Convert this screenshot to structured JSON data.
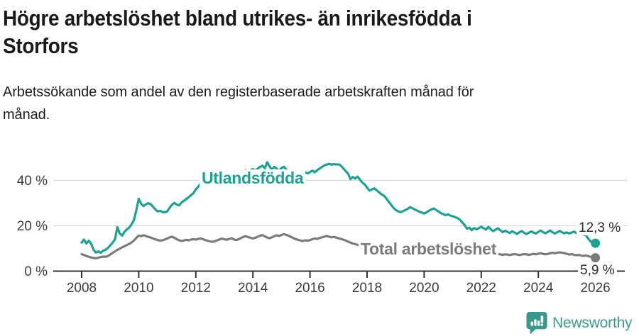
{
  "header": {
    "title_lines": [
      "Högre arbetslöshet bland utrikes- än inrikesfödda i",
      "Storfors"
    ],
    "subtitle_lines": [
      "Arbetssökande som andel av den registerbaserade arbetskraften månad för",
      "månad."
    ]
  },
  "chart_data": {
    "type": "line",
    "unit": "%",
    "x_start_year": 2008,
    "x_points_per_year": 12,
    "x_end_year": 2026,
    "ylim": [
      0,
      50
    ],
    "grid": true,
    "y_ticks": [
      {
        "value": 0,
        "label": "0 %"
      },
      {
        "value": 20,
        "label": "20 %"
      },
      {
        "value": 40,
        "label": "40 %"
      }
    ],
    "x_ticks": [
      {
        "value": 2008,
        "label": "2008"
      },
      {
        "value": 2010,
        "label": "2010"
      },
      {
        "value": 2012,
        "label": "2012"
      },
      {
        "value": 2014,
        "label": "2014"
      },
      {
        "value": 2016,
        "label": "2016"
      },
      {
        "value": 2018,
        "label": "2018"
      },
      {
        "value": 2020,
        "label": "2020"
      },
      {
        "value": 2022,
        "label": "2022"
      },
      {
        "value": 2024,
        "label": "2024"
      },
      {
        "value": 2026,
        "label": "2026"
      }
    ],
    "series": [
      {
        "name": "Utlandsfödda",
        "color": "#1ca192",
        "end_label": "12,3 %",
        "end_value": 12.3,
        "values": [
          12.6,
          13.9,
          12.2,
          13.4,
          12.1,
          9.4,
          8.2,
          8.7,
          8.1,
          9.0,
          9.4,
          10.2,
          11.3,
          12.5,
          14.0,
          19.4,
          16.6,
          15.7,
          17.3,
          18.4,
          19.2,
          20.7,
          22.6,
          27.0,
          31.9,
          29.7,
          28.7,
          29.4,
          30.0,
          29.5,
          28.4,
          27.2,
          26.3,
          26.6,
          26.1,
          25.9,
          26.4,
          27.9,
          29.3,
          30.1,
          29.3,
          29.0,
          30.3,
          31.0,
          31.8,
          32.6,
          33.5,
          34.4,
          36.0,
          37.2,
          38.6,
          40.2,
          39.6,
          40.7,
          41.1,
          40.5,
          41.4,
          41.9,
          41.3,
          42.1,
          42.7,
          42.1,
          42.9,
          43.5,
          42.8,
          43.3,
          44.1,
          43.4,
          44.0,
          44.6,
          43.9,
          44.5,
          45.0,
          44.3,
          45.2,
          45.9,
          46.5,
          45.4,
          48.0,
          46.2,
          44.7,
          46.0,
          45.2,
          44.0,
          45.5,
          46.0,
          44.9,
          43.7,
          42.9,
          42.3,
          41.8,
          42.6,
          43.2,
          42.7,
          43.5,
          43.1,
          43.7,
          44.3,
          43.6,
          44.5,
          45.2,
          45.9,
          46.6,
          47.0,
          47.3,
          46.9,
          47.2,
          47.0,
          47.1,
          46.5,
          45.3,
          44.1,
          43.0,
          40.6,
          41.5,
          40.8,
          41.7,
          40.3,
          39.1,
          38.2,
          36.8,
          35.5,
          36.0,
          36.5,
          35.7,
          34.8,
          33.9,
          33.3,
          32.2,
          30.7,
          29.4,
          28.0,
          27.0,
          26.4,
          26.0,
          26.4,
          26.9,
          27.4,
          28.2,
          27.8,
          27.2,
          26.7,
          26.2,
          25.8,
          25.4,
          25.9,
          26.6,
          27.2,
          27.6,
          27.0,
          26.3,
          25.6,
          25.1,
          24.7,
          25.0,
          24.5,
          24.2,
          23.8,
          23.4,
          22.7,
          21.5,
          20.3,
          18.7,
          19.2,
          18.1,
          19.0,
          18.4,
          19.0,
          19.6,
          18.9,
          18.3,
          19.5,
          18.5,
          17.6,
          18.3,
          18.9,
          18.0,
          17.2,
          17.8,
          17.3,
          16.8,
          17.6,
          17.0,
          16.4,
          17.1,
          17.7,
          16.9,
          16.3,
          16.9,
          17.5,
          17.0,
          16.6,
          17.3,
          17.9,
          17.2,
          16.7,
          17.3,
          17.9,
          17.1,
          16.6,
          17.2,
          17.7,
          17.1,
          16.7,
          17.1,
          16.6,
          17.0,
          17.4,
          16.8,
          16.3,
          16.8,
          16.2,
          15.8,
          14.3,
          13.0,
          12.6,
          12.3
        ]
      },
      {
        "name": "Total arbetslöshet",
        "color": "#7b7b7b",
        "end_label": "5,9 %",
        "end_value": 5.9,
        "values": [
          7.5,
          7.1,
          6.7,
          6.3,
          6.0,
          5.8,
          5.7,
          5.9,
          6.2,
          6.4,
          6.3,
          6.7,
          7.3,
          8.0,
          8.7,
          9.4,
          9.9,
          10.5,
          11.0,
          11.5,
          12.0,
          12.7,
          13.5,
          14.7,
          15.7,
          15.4,
          15.8,
          15.5,
          15.1,
          14.8,
          14.4,
          14.0,
          13.7,
          13.5,
          13.6,
          14.0,
          14.4,
          14.9,
          15.2,
          14.7,
          14.1,
          13.6,
          13.3,
          13.5,
          13.8,
          13.6,
          13.9,
          14.1,
          13.9,
          14.2,
          14.4,
          14.1,
          13.7,
          13.4,
          13.1,
          12.9,
          13.2,
          13.6,
          14.0,
          14.3,
          14.1,
          13.8,
          14.2,
          14.5,
          14.0,
          13.7,
          14.1,
          14.6,
          15.1,
          15.4,
          15.0,
          14.7,
          14.4,
          14.7,
          15.2,
          15.6,
          15.9,
          15.3,
          14.8,
          14.5,
          14.9,
          15.4,
          15.8,
          15.5,
          15.9,
          16.3,
          16.0,
          15.6,
          15.1,
          14.6,
          14.1,
          13.8,
          13.5,
          13.3,
          13.6,
          13.4,
          13.7,
          14.1,
          14.4,
          14.2,
          14.6,
          14.9,
          15.2,
          15.5,
          15.2,
          14.9,
          15.1,
          14.8,
          14.5,
          14.2,
          13.9,
          13.5,
          13.0,
          12.6,
          12.2,
          11.9,
          11.6,
          11.3,
          11.1,
          10.9,
          10.7,
          10.5,
          10.3,
          10.1,
          9.9,
          9.8,
          9.6,
          9.5,
          9.3,
          9.2,
          9.0,
          8.9,
          8.8,
          8.7,
          8.6,
          8.5,
          8.4,
          8.3,
          8.3,
          8.2,
          8.1,
          8.1,
          8.0,
          8.0,
          7.9,
          7.9,
          7.8,
          7.8,
          7.7,
          7.7,
          7.6,
          7.6,
          7.5,
          7.5,
          7.4,
          7.4,
          7.4,
          7.3,
          7.3,
          7.2,
          7.2,
          7.2,
          7.1,
          7.1,
          7.1,
          7.0,
          7.0,
          7.0,
          7.0,
          7.0,
          6.9,
          6.9,
          7.0,
          7.1,
          7.3,
          7.5,
          7.4,
          7.2,
          7.4,
          7.3,
          7.1,
          7.3,
          7.5,
          7.3,
          7.1,
          7.3,
          7.5,
          7.4,
          7.2,
          7.4,
          7.6,
          7.4,
          7.7,
          7.9,
          7.6,
          7.4,
          7.6,
          7.9,
          8.1,
          7.9,
          8.1,
          8.3,
          8.1,
          7.9,
          7.6,
          7.3,
          7.5,
          7.2,
          7.0,
          7.2,
          6.9,
          6.7,
          6.9,
          6.6,
          6.3,
          6.1,
          5.9
        ]
      }
    ],
    "colors": {
      "grid": "#d9d9d9",
      "axis": "#333333",
      "tick_text": "#3c3c3c"
    }
  },
  "footer": {
    "brand": "Newsworthy"
  }
}
